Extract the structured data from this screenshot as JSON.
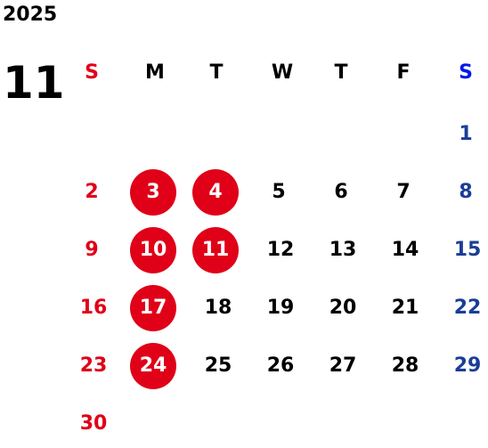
{
  "year": "2025",
  "month": "11",
  "weekdays": [
    "S",
    "M",
    "T",
    "W",
    "T",
    "F",
    "S"
  ],
  "weeks": [
    [
      "",
      "",
      "",
      "",
      "",
      "",
      "1"
    ],
    [
      "2",
      "3",
      "4",
      "5",
      "6",
      "7",
      "8"
    ],
    [
      "9",
      "10",
      "11",
      "12",
      "13",
      "14",
      "15"
    ],
    [
      "16",
      "17",
      "18",
      "19",
      "20",
      "21",
      "22"
    ],
    [
      "23",
      "24",
      "25",
      "26",
      "27",
      "28",
      "29"
    ],
    [
      "30",
      "",
      "",
      "",
      "",
      "",
      ""
    ]
  ],
  "highlighted_dates": [
    "3",
    "4",
    "10",
    "11",
    "17",
    "24"
  ],
  "colors": {
    "sunday": "#e00018",
    "saturday_header": "#0018e8",
    "saturday": "#1a3e96",
    "weekday": "#000000",
    "highlight_fill": "#e00018",
    "highlight_text": "#ffffff"
  }
}
